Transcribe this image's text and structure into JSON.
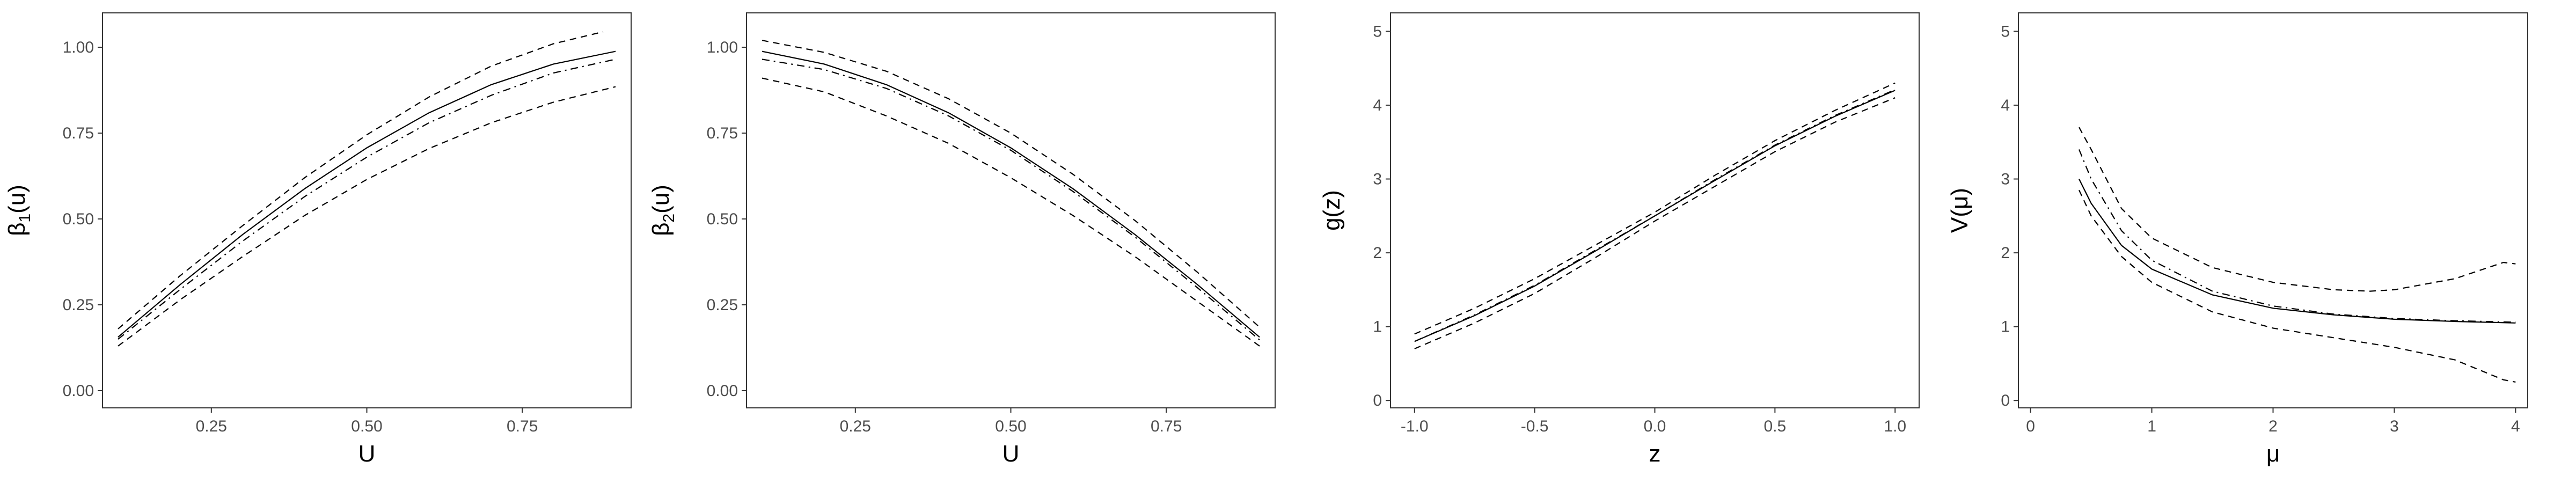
{
  "chart_data": [
    {
      "type": "line",
      "xlabel": "U",
      "ylabel": "β1(u)",
      "ylabel_parts": [
        "β",
        "1",
        "(u)"
      ],
      "xlim": [
        0.075,
        0.925
      ],
      "ylim": [
        -0.05,
        1.1
      ],
      "xticks": [
        0.25,
        0.5,
        0.75
      ],
      "xtick_labels": [
        "0.25",
        "0.50",
        "0.75"
      ],
      "yticks": [
        0.0,
        0.25,
        0.5,
        0.75,
        1.0
      ],
      "ytick_labels": [
        "0.00",
        "0.25",
        "0.50",
        "0.75",
        "1.00"
      ],
      "grid": false,
      "legend": "none",
      "series": [
        {
          "style": "solid",
          "x": [
            0.1,
            0.2,
            0.3,
            0.4,
            0.5,
            0.6,
            0.7,
            0.8,
            0.9
          ],
          "y": [
            0.156,
            0.309,
            0.454,
            0.588,
            0.707,
            0.809,
            0.891,
            0.951,
            0.988
          ]
        },
        {
          "style": "dashdot",
          "x": [
            0.1,
            0.2,
            0.3,
            0.4,
            0.5,
            0.6,
            0.7,
            0.8,
            0.9
          ],
          "y": [
            0.15,
            0.295,
            0.435,
            0.565,
            0.68,
            0.78,
            0.86,
            0.925,
            0.965
          ]
        },
        {
          "style": "dashed",
          "x": [
            0.1,
            0.2,
            0.3,
            0.4,
            0.5,
            0.6,
            0.7,
            0.8,
            0.88
          ],
          "y": [
            0.18,
            0.335,
            0.48,
            0.62,
            0.745,
            0.855,
            0.945,
            1.01,
            1.045
          ]
        },
        {
          "style": "dashed",
          "x": [
            0.1,
            0.2,
            0.3,
            0.4,
            0.5,
            0.6,
            0.7,
            0.8,
            0.9
          ],
          "y": [
            0.13,
            0.265,
            0.39,
            0.51,
            0.615,
            0.705,
            0.78,
            0.84,
            0.885
          ]
        }
      ]
    },
    {
      "type": "line",
      "xlabel": "U",
      "ylabel": "β2(u)",
      "ylabel_parts": [
        "β",
        "2",
        "(u)"
      ],
      "xlim": [
        0.075,
        0.925
      ],
      "ylim": [
        -0.05,
        1.1
      ],
      "xticks": [
        0.25,
        0.5,
        0.75
      ],
      "xtick_labels": [
        "0.25",
        "0.50",
        "0.75"
      ],
      "yticks": [
        0.0,
        0.25,
        0.5,
        0.75,
        1.0
      ],
      "ytick_labels": [
        "0.00",
        "0.25",
        "0.50",
        "0.75",
        "1.00"
      ],
      "grid": false,
      "legend": "none",
      "series": [
        {
          "style": "solid",
          "x": [
            0.1,
            0.2,
            0.3,
            0.4,
            0.5,
            0.6,
            0.7,
            0.8,
            0.9
          ],
          "y": [
            0.988,
            0.951,
            0.891,
            0.809,
            0.707,
            0.588,
            0.454,
            0.309,
            0.156
          ]
        },
        {
          "style": "dashdot",
          "x": [
            0.1,
            0.2,
            0.3,
            0.4,
            0.5,
            0.6,
            0.7,
            0.8,
            0.9
          ],
          "y": [
            0.965,
            0.935,
            0.88,
            0.8,
            0.7,
            0.58,
            0.447,
            0.3,
            0.148
          ]
        },
        {
          "style": "dashed",
          "x": [
            0.1,
            0.2,
            0.3,
            0.4,
            0.5,
            0.6,
            0.7,
            0.8,
            0.9
          ],
          "y": [
            1.02,
            0.985,
            0.93,
            0.85,
            0.75,
            0.63,
            0.495,
            0.345,
            0.185
          ]
        },
        {
          "style": "dashed",
          "x": [
            0.1,
            0.2,
            0.3,
            0.4,
            0.5,
            0.6,
            0.7,
            0.8,
            0.9
          ],
          "y": [
            0.91,
            0.87,
            0.8,
            0.72,
            0.62,
            0.51,
            0.39,
            0.26,
            0.13
          ]
        }
      ]
    },
    {
      "type": "line",
      "xlabel": "z",
      "ylabel": "g(z)",
      "ylabel_parts": [
        "g(z)"
      ],
      "xlim": [
        -1.1,
        1.1
      ],
      "ylim": [
        -0.1,
        5.25
      ],
      "xticks": [
        -1.0,
        -0.5,
        0.0,
        0.5,
        1.0
      ],
      "xtick_labels": [
        "-1.0",
        "-0.5",
        "0.0",
        "0.5",
        "1.0"
      ],
      "yticks": [
        0,
        1,
        2,
        3,
        4,
        5
      ],
      "ytick_labels": [
        "0",
        "1",
        "2",
        "3",
        "4",
        "5"
      ],
      "grid": false,
      "legend": "none",
      "series": [
        {
          "style": "solid",
          "x": [
            -1.0,
            -0.75,
            -0.5,
            -0.25,
            0.0,
            0.25,
            0.5,
            0.75,
            1.0
          ],
          "y": [
            0.8,
            1.15,
            1.55,
            2.02,
            2.5,
            2.98,
            3.45,
            3.85,
            4.2
          ]
        },
        {
          "style": "dashdot",
          "x": [
            -1.0,
            -0.75,
            -0.5,
            -0.25,
            0.0,
            0.25,
            0.5,
            0.75,
            1.0
          ],
          "y": [
            0.8,
            1.16,
            1.56,
            2.03,
            2.5,
            2.99,
            3.46,
            3.86,
            4.21
          ]
        },
        {
          "style": "dashed",
          "x": [
            -1.0,
            -0.75,
            -0.5,
            -0.25,
            0.0,
            0.25,
            0.5,
            0.75,
            1.0
          ],
          "y": [
            0.9,
            1.25,
            1.65,
            2.1,
            2.55,
            3.05,
            3.52,
            3.93,
            4.3
          ]
        },
        {
          "style": "dashed",
          "x": [
            -1.0,
            -0.75,
            -0.5,
            -0.25,
            0.0,
            0.25,
            0.5,
            0.75,
            1.0
          ],
          "y": [
            0.7,
            1.05,
            1.45,
            1.93,
            2.43,
            2.9,
            3.37,
            3.77,
            4.1
          ]
        }
      ]
    },
    {
      "type": "line",
      "xlabel": "μ",
      "ylabel": "V(μ)",
      "ylabel_parts": [
        "V(μ)"
      ],
      "xlim": [
        -0.1,
        4.1
      ],
      "ylim": [
        -0.1,
        5.25
      ],
      "xticks": [
        0,
        1,
        2,
        3,
        4
      ],
      "xtick_labels": [
        "0",
        "1",
        "2",
        "3",
        "4"
      ],
      "yticks": [
        0,
        1,
        2,
        3,
        4,
        5
      ],
      "ytick_labels": [
        "0",
        "1",
        "2",
        "3",
        "4",
        "5"
      ],
      "grid": false,
      "legend": "none",
      "series": [
        {
          "style": "solid",
          "x": [
            0.4,
            0.5,
            0.75,
            1.0,
            1.5,
            2.0,
            2.5,
            3.0,
            3.5,
            4.0
          ],
          "y": [
            3.0,
            2.67,
            2.1,
            1.78,
            1.43,
            1.25,
            1.16,
            1.1,
            1.07,
            1.05
          ]
        },
        {
          "style": "dashdot",
          "x": [
            0.4,
            0.5,
            0.75,
            1.0,
            1.5,
            2.0,
            2.5,
            3.0,
            3.5,
            4.0
          ],
          "y": [
            3.4,
            3.0,
            2.3,
            1.9,
            1.48,
            1.28,
            1.17,
            1.11,
            1.08,
            1.06
          ]
        },
        {
          "style": "dashed",
          "x": [
            0.4,
            0.5,
            0.75,
            1.0,
            1.5,
            2.0,
            2.5,
            2.8,
            3.0,
            3.5,
            3.9,
            4.0
          ],
          "y": [
            3.7,
            3.4,
            2.6,
            2.2,
            1.8,
            1.6,
            1.5,
            1.48,
            1.5,
            1.65,
            1.87,
            1.85
          ]
        },
        {
          "style": "dashed",
          "x": [
            0.4,
            0.5,
            0.75,
            1.0,
            1.5,
            2.0,
            2.5,
            3.0,
            3.5,
            3.9,
            4.0
          ],
          "y": [
            2.85,
            2.5,
            1.95,
            1.6,
            1.2,
            0.98,
            0.85,
            0.72,
            0.55,
            0.28,
            0.25
          ]
        }
      ]
    }
  ]
}
